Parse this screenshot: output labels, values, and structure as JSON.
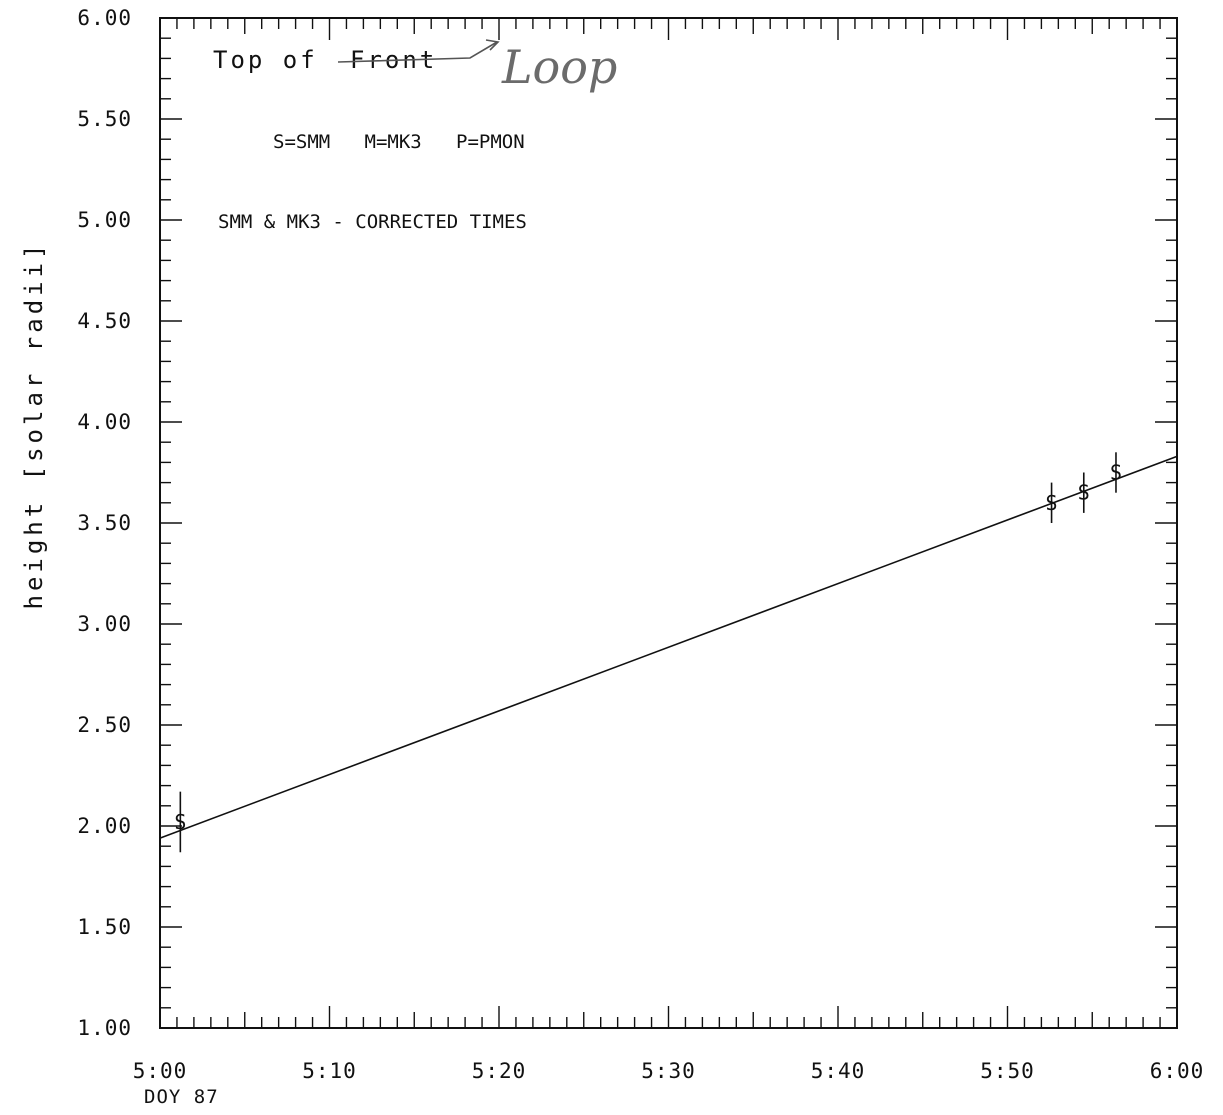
{
  "chart_data": {
    "type": "scatter",
    "title": "",
    "xlabel": "",
    "ylabel": "height [solar radii]",
    "x_unit": "minutes past 5:00, DOY 87",
    "xlim": [
      0,
      60
    ],
    "ylim": [
      1.0,
      6.0
    ],
    "x_ticks": [
      {
        "v": 0,
        "label": "5:00"
      },
      {
        "v": 10,
        "label": "5:10"
      },
      {
        "v": 20,
        "label": "5:20"
      },
      {
        "v": 30,
        "label": "5:30"
      },
      {
        "v": 40,
        "label": "5:40"
      },
      {
        "v": 50,
        "label": "5:50"
      },
      {
        "v": 60,
        "label": "6:00"
      }
    ],
    "x_sublabel": "DOY 87",
    "y_ticks": [
      {
        "v": 1.0,
        "label": "1.00"
      },
      {
        "v": 1.5,
        "label": "1.50"
      },
      {
        "v": 2.0,
        "label": "2.00"
      },
      {
        "v": 2.5,
        "label": "2.50"
      },
      {
        "v": 3.0,
        "label": "3.00"
      },
      {
        "v": 3.5,
        "label": "3.50"
      },
      {
        "v": 4.0,
        "label": "4.00"
      },
      {
        "v": 4.5,
        "label": "4.50"
      },
      {
        "v": 5.0,
        "label": "5.00"
      },
      {
        "v": 5.5,
        "label": "5.50"
      },
      {
        "v": 6.0,
        "label": "6.00"
      }
    ],
    "grid": false,
    "series": [
      {
        "marker": "S",
        "points": [
          {
            "x": 1.2,
            "y": 2.02,
            "err": 0.15
          },
          {
            "x": 52.6,
            "y": 3.6,
            "err": 0.1
          },
          {
            "x": 54.5,
            "y": 3.65,
            "err": 0.1
          },
          {
            "x": 56.4,
            "y": 3.75,
            "err": 0.1
          }
        ]
      }
    ],
    "fit_line": {
      "x": [
        0,
        60
      ],
      "y": [
        1.94,
        3.83
      ]
    },
    "annotations": {
      "heading_prefix": "Top of",
      "heading_struck": "Front",
      "heading_handwritten": "Loop",
      "legend": "S=SMM   M=MK3   P=PMON",
      "note": "SMM & MK3 - CORRECTED TIMES"
    }
  }
}
